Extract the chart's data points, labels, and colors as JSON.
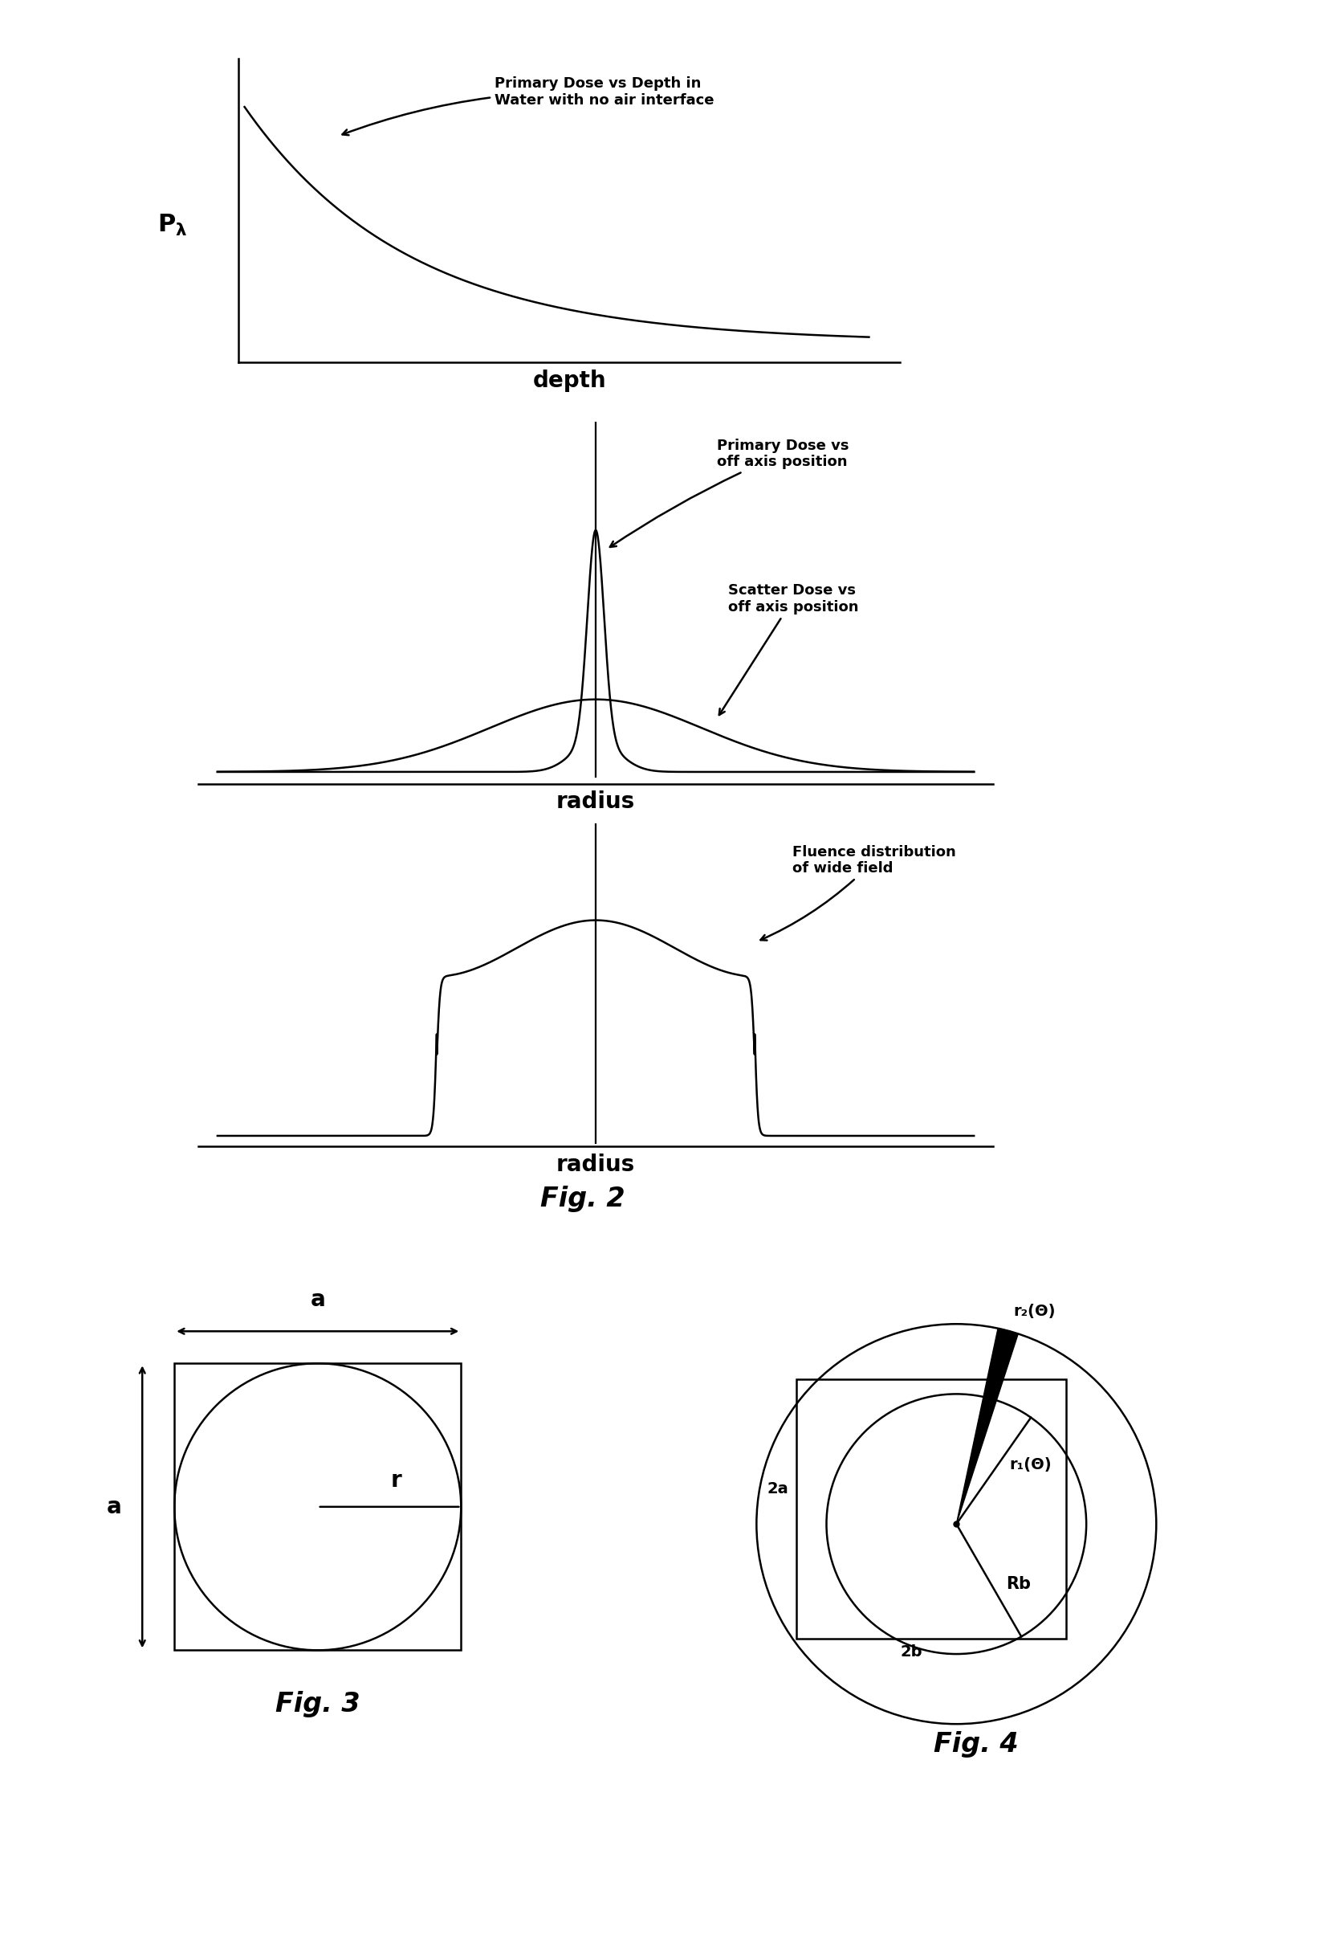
{
  "bg_color": "#ffffff",
  "fig_width": 16.49,
  "fig_height": 24.4,
  "fig2_label": "Fig. 2",
  "fig3_label": "Fig. 3",
  "fig4_label": "Fig. 4",
  "plot1_xlabel": "depth",
  "plot1_ylabel": "Pλ",
  "plot1_annotation": "Primary Dose vs Depth in\nWater with no air interface",
  "plot2_xlabel": "radius",
  "plot2_ann1": "Primary Dose vs\noff axis position",
  "plot2_ann2": "Scatter Dose vs\noff axis position",
  "plot3_xlabel": "radius",
  "plot3_annotation": "Fluence distribution\nof wide field",
  "fig3_ann_a_horiz": "a",
  "fig3_ann_a_vert": "a",
  "fig3_ann_r": "r",
  "fig4_ann_2a": "2a",
  "fig4_ann_2b": "2b",
  "fig4_ann_r1": "r₁(Θ)",
  "fig4_ann_r2": "r₂(Θ)",
  "fig4_ann_rb": "Rb",
  "line_color": "#000000",
  "line_width": 1.8,
  "font_size_label": 20,
  "font_size_annot": 13,
  "font_size_axis": 18,
  "font_size_fig": 24
}
